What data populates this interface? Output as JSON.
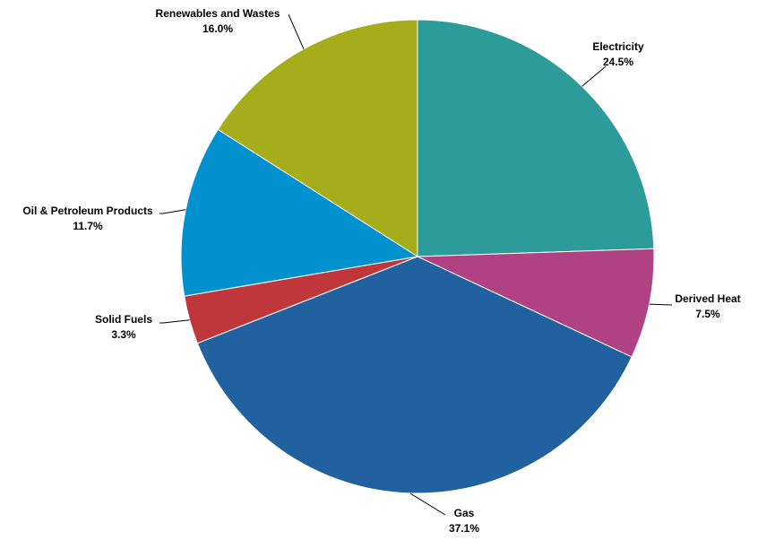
{
  "chart_data": {
    "type": "pie",
    "title": "",
    "slices": [
      {
        "label": "Electricity",
        "value_label": "24.5%",
        "value": 24.5,
        "color": "#2E9B9B"
      },
      {
        "label": "Derived Heat",
        "value_label": "7.5%",
        "value": 7.5,
        "color": "#B04284"
      },
      {
        "label": "Gas",
        "value_label": "37.1%",
        "value": 37.1,
        "color": "#2261A0"
      },
      {
        "label": "Solid Fuels",
        "value_label": "3.3%",
        "value": 3.3,
        "color": "#BF373B"
      },
      {
        "label": "Oil & Petroleum Products",
        "value_label": "11.7%",
        "value": 11.7,
        "color": "#0291CF"
      },
      {
        "label": "Renewables and Wastes",
        "value_label": "16.0%",
        "value": 16.0,
        "color": "#A6AD1B"
      }
    ],
    "start_angle": "12 o'clock",
    "direction": "clockwise",
    "legend": "none"
  }
}
